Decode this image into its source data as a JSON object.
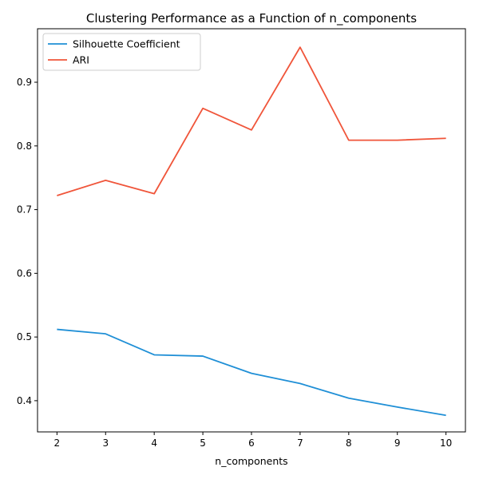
{
  "chart_data": {
    "type": "line",
    "title": "Clustering Performance as a Function of n_components",
    "xlabel": "n_components",
    "ylabel": "",
    "x": [
      2,
      3,
      4,
      5,
      6,
      7,
      8,
      9,
      10
    ],
    "xlim": [
      1.6,
      10.4
    ],
    "ylim": [
      0.351,
      0.984
    ],
    "xticks": [
      2,
      3,
      4,
      5,
      6,
      7,
      8,
      9,
      10
    ],
    "yticks": [
      0.4,
      0.5,
      0.6,
      0.7,
      0.8,
      0.9
    ],
    "grid": false,
    "legend_position": "top-left",
    "series": [
      {
        "name": "Silhouette Coefficient",
        "color": "#1f8fd6",
        "values": [
          0.512,
          0.505,
          0.472,
          0.47,
          0.443,
          0.427,
          0.404,
          0.39,
          0.377
        ]
      },
      {
        "name": "ARI",
        "color": "#f0553a",
        "values": [
          0.722,
          0.746,
          0.725,
          0.859,
          0.825,
          0.955,
          0.809,
          0.809,
          0.812
        ]
      }
    ]
  }
}
